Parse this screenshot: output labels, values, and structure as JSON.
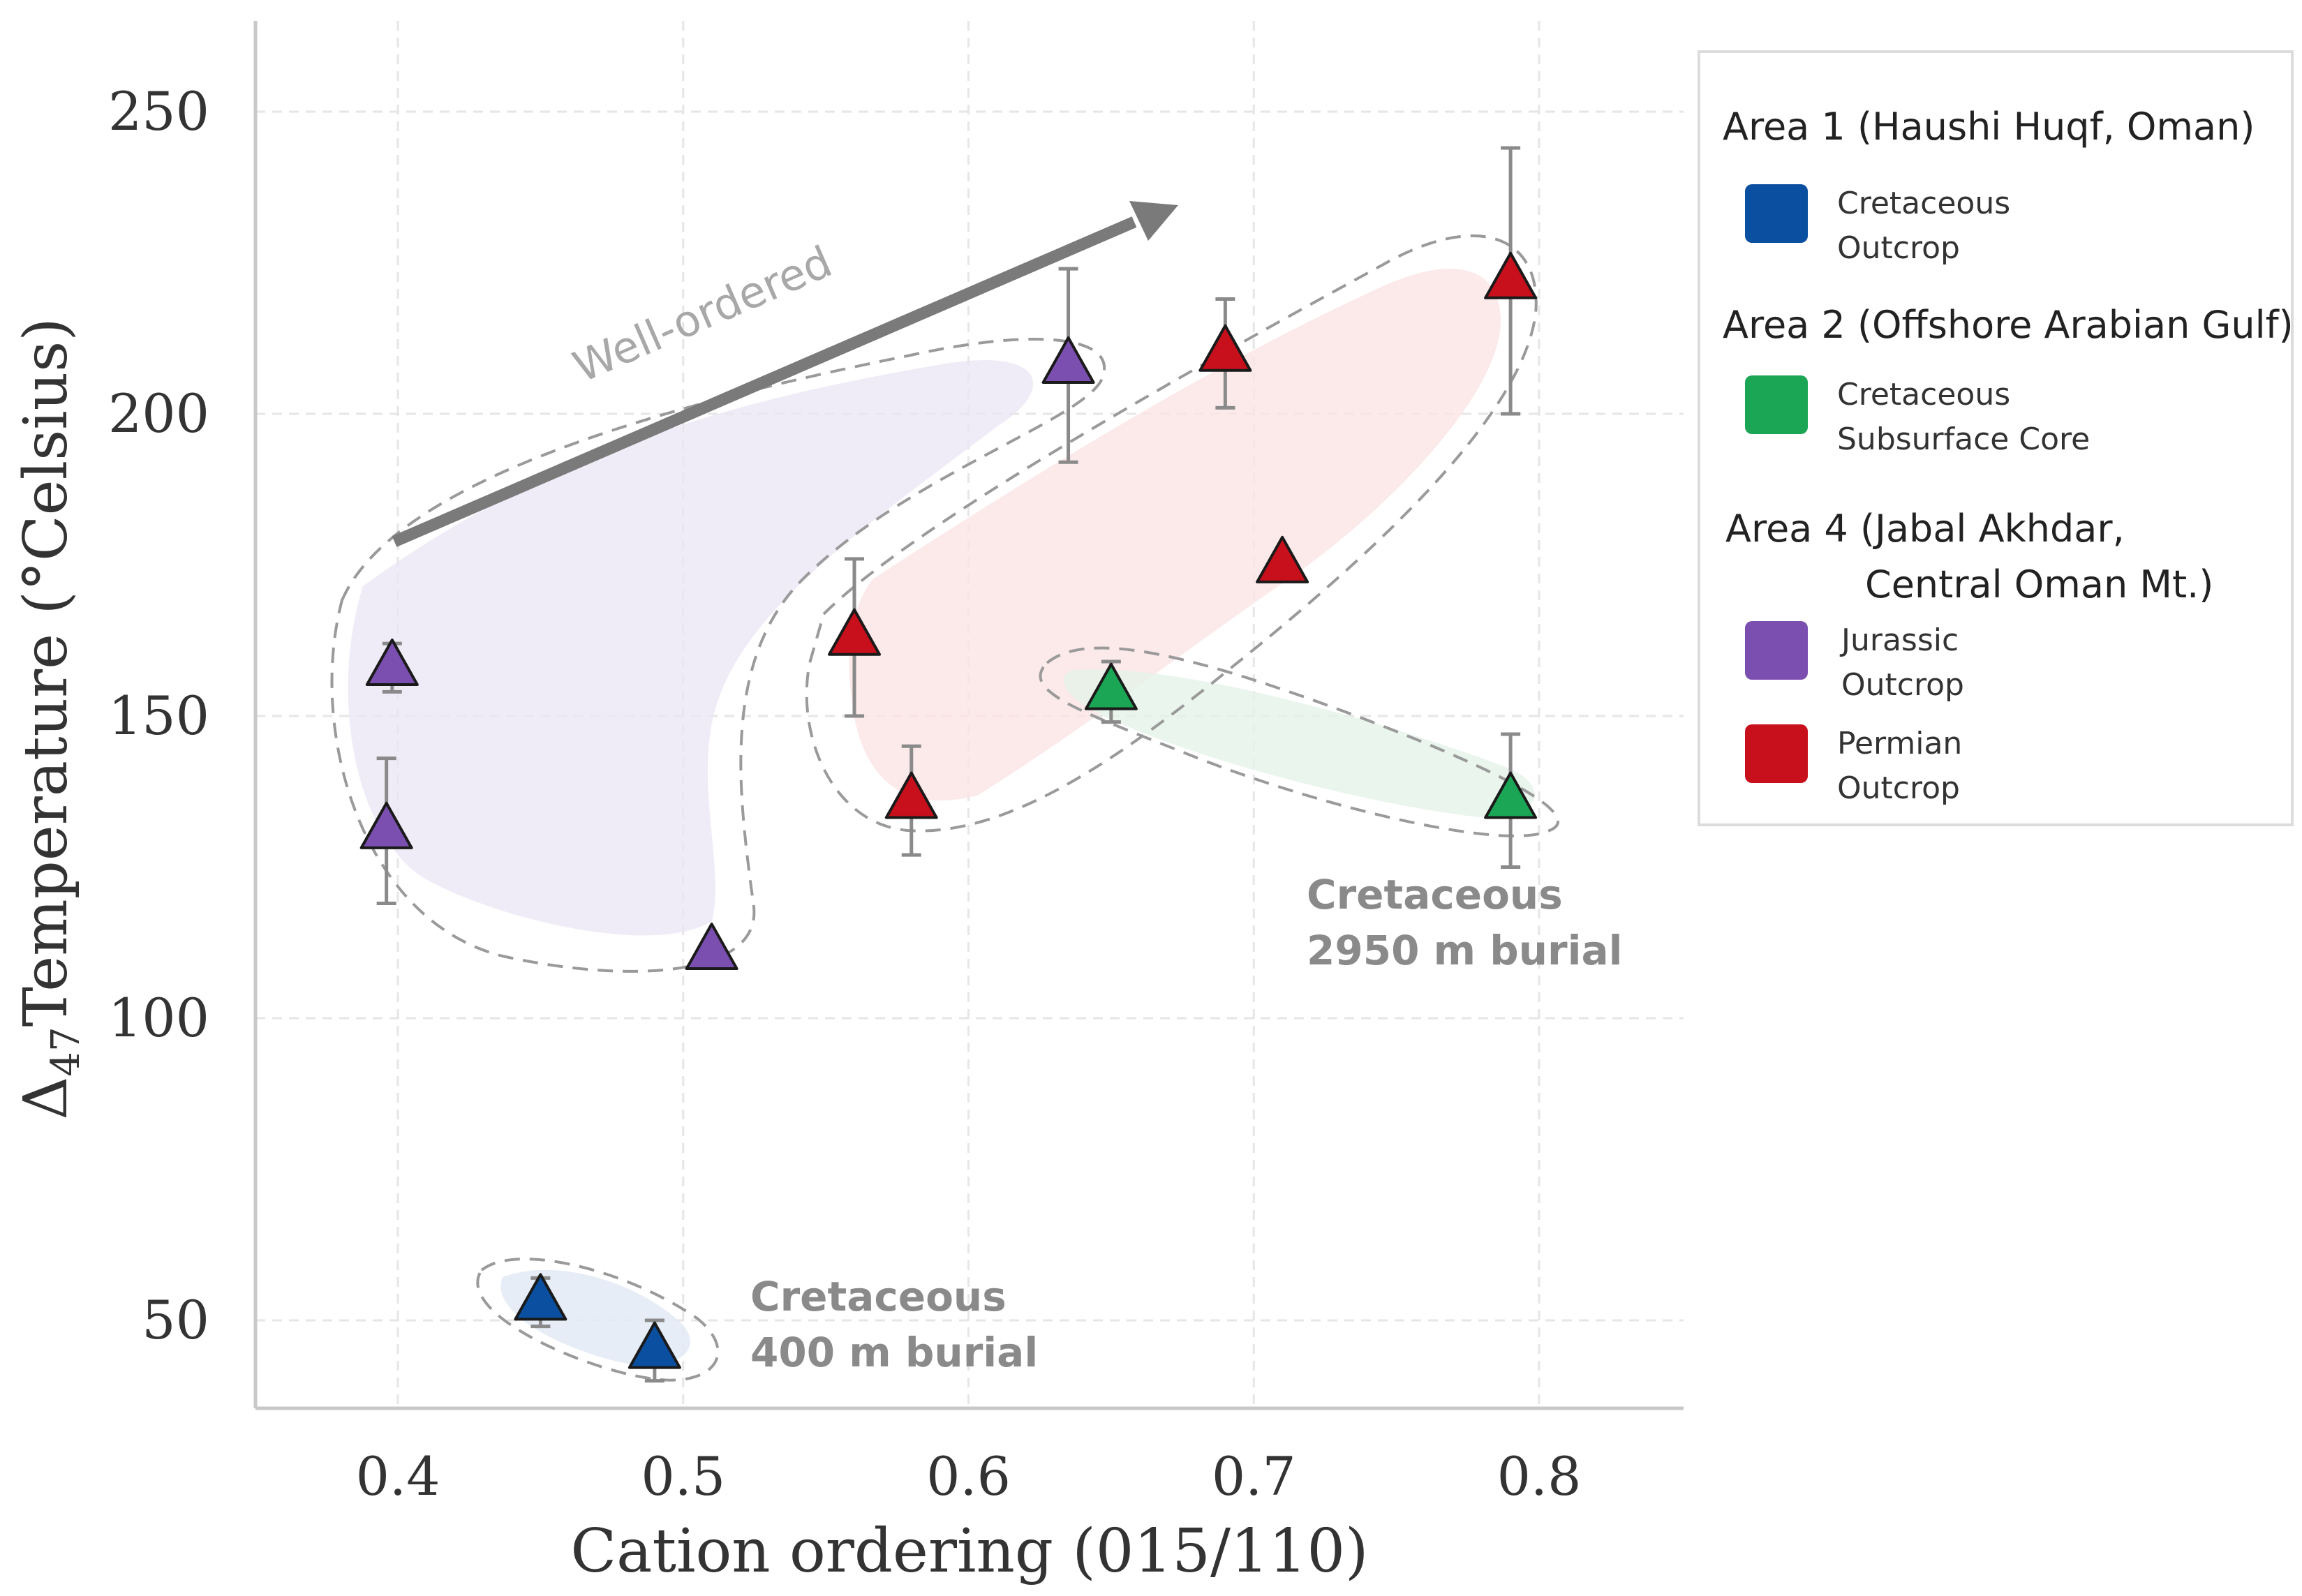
{
  "chart_data": {
    "type": "scatter",
    "xlabel": "Cation ordering (015/110)",
    "ylabel_prefix": "Δ",
    "ylabel_subscript": "47",
    "ylabel_rest": "Temperature (°Celsius)",
    "xlim": [
      0.35,
      0.85
    ],
    "ylim": [
      35,
      265
    ],
    "xticks": [
      {
        "value": 0.4,
        "label": "0.4"
      },
      {
        "value": 0.5,
        "label": "0.5"
      },
      {
        "value": 0.6,
        "label": "0.6"
      },
      {
        "value": 0.7,
        "label": "0.7"
      },
      {
        "value": 0.8,
        "label": "0.8"
      }
    ],
    "yticks": [
      {
        "value": 50,
        "label": "50"
      },
      {
        "value": 100,
        "label": "100"
      },
      {
        "value": 150,
        "label": "150"
      },
      {
        "value": 200,
        "label": "200"
      },
      {
        "value": 250,
        "label": "250"
      }
    ],
    "grid": true,
    "legend_placement": "right",
    "legend": [
      {
        "heading": [
          "Area 1 (Haushi Huqf, Oman)"
        ],
        "series": [
          0
        ]
      },
      {
        "heading": [
          "Area 2 (Offshore Arabian Gulf)"
        ],
        "series": [
          1
        ]
      },
      {
        "heading": [
          "Area 4 (Jabal Akhdar,",
          "Central Oman Mt.)"
        ],
        "series": [
          2,
          3
        ]
      }
    ],
    "series": [
      {
        "label_lines": [
          "Cretaceous",
          "Outcrop"
        ],
        "color": "#0b4fa0",
        "points": [
          {
            "x": 0.45,
            "y": 53,
            "err": 4
          },
          {
            "x": 0.49,
            "y": 45,
            "err": 5
          }
        ]
      },
      {
        "label_lines": [
          "Cretaceous",
          "Subsurface Core"
        ],
        "color": "#1aa655",
        "points": [
          {
            "x": 0.65,
            "y": 154,
            "err": 5
          },
          {
            "x": 0.79,
            "y": 136,
            "err": 11
          }
        ]
      },
      {
        "label_lines": [
          "Jurassic",
          "Outcrop"
        ],
        "color": "#7b4fb0",
        "points": [
          {
            "x": 0.398,
            "y": 158,
            "err": 4
          },
          {
            "x": 0.396,
            "y": 131,
            "err": 12
          },
          {
            "x": 0.51,
            "y": 111,
            "err": 2
          },
          {
            "x": 0.635,
            "y": 208,
            "err": 16
          }
        ]
      },
      {
        "label_lines": [
          "Permian",
          "Outcrop"
        ],
        "color": "#c8101c",
        "points": [
          {
            "x": 0.56,
            "y": 163,
            "err": 13
          },
          {
            "x": 0.58,
            "y": 136,
            "err": 9
          },
          {
            "x": 0.69,
            "y": 210,
            "err": 9
          },
          {
            "x": 0.71,
            "y": 175,
            "err": 0
          },
          {
            "x": 0.79,
            "y": 222,
            "err": 22
          }
        ]
      }
    ],
    "annotations": [
      {
        "text": "Well-ordered",
        "kind": "arrow-label"
      },
      {
        "lines": [
          "Cretaceous",
          "400 m burial"
        ],
        "kind": "region-label"
      },
      {
        "lines": [
          "Cretaceous",
          "2950 m burial"
        ],
        "kind": "region-label"
      }
    ]
  }
}
